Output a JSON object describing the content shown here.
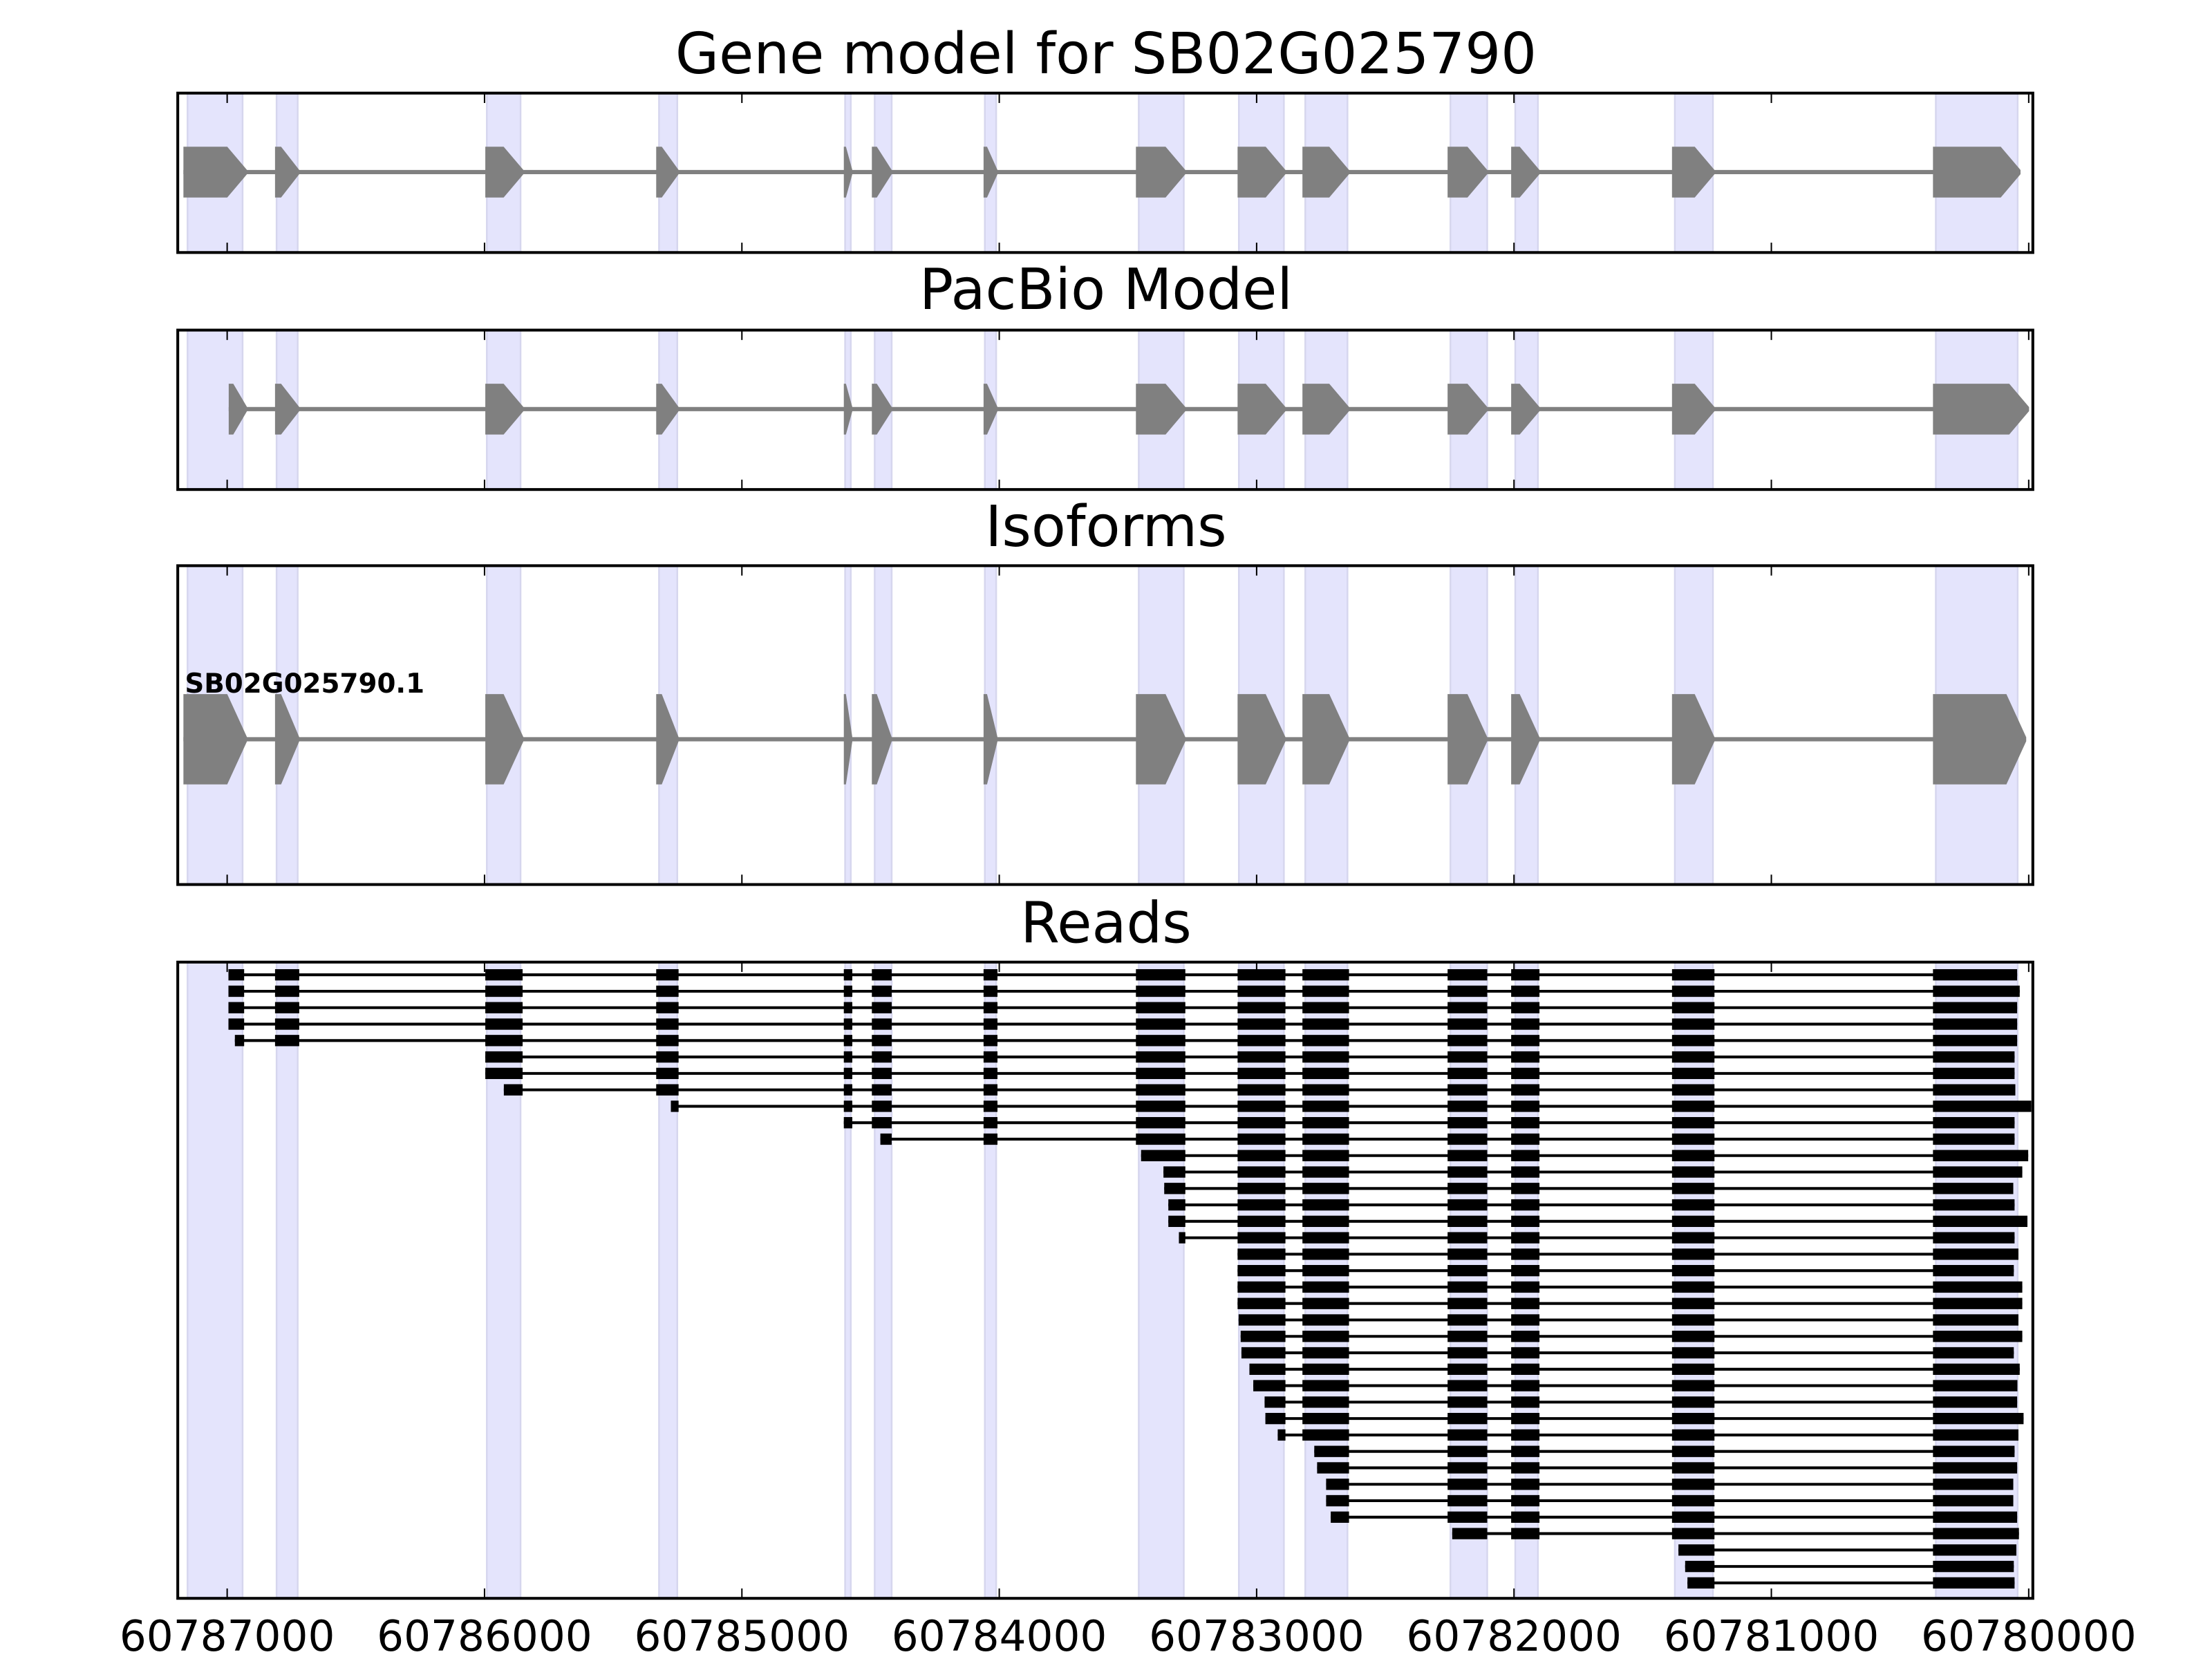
{
  "chart_data": {
    "type": "gene-track",
    "xlim": [
      60787192,
      60779984
    ],
    "x_ticks": [
      60787000,
      60786000,
      60785000,
      60784000,
      60783000,
      60782000,
      60781000,
      60780000
    ],
    "x_tick_labels": [
      "60787000",
      "60786000",
      "60785000",
      "60784000",
      "60783000",
      "60782000",
      "60781000",
      "60780000"
    ],
    "colors": {
      "exon": "#808080",
      "read": "#000000",
      "shade": "#e4e4fc",
      "shade_edge": "#d6d6ee"
    },
    "shaded_regions": [
      [
        60787154,
        60786940
      ],
      [
        60786808,
        60786726
      ],
      [
        60785991,
        60785860
      ],
      [
        60785322,
        60785251
      ],
      [
        60784599,
        60784577
      ],
      [
        60784484,
        60784418
      ],
      [
        60784056,
        60784012
      ],
      [
        60783458,
        60783283
      ],
      [
        60783069,
        60782894
      ],
      [
        60782811,
        60782647
      ],
      [
        60782247,
        60782104
      ],
      [
        60781995,
        60781907
      ],
      [
        60781375,
        60781227
      ],
      [
        60780361,
        60780043
      ]
    ],
    "panels": [
      {
        "title": "Gene model for SB02G025790",
        "exons": [
          [
            60787170,
            60786923
          ],
          [
            60786814,
            60786720
          ],
          [
            60785997,
            60785849
          ],
          [
            60785333,
            60785246
          ],
          [
            60784604,
            60784571
          ],
          [
            60784495,
            60784418
          ],
          [
            60784061,
            60784007
          ],
          [
            60783469,
            60783277
          ],
          [
            60783074,
            60782888
          ],
          [
            60782822,
            60782641
          ],
          [
            60782258,
            60782104
          ],
          [
            60782011,
            60781901
          ],
          [
            60781386,
            60781221
          ],
          [
            60780372,
            60780032
          ]
        ]
      },
      {
        "title": "PacBio Model",
        "exons": [
          [
            60786994,
            60786923
          ],
          [
            60786814,
            60786720
          ],
          [
            60785997,
            60785849
          ],
          [
            60785333,
            60785246
          ],
          [
            60784604,
            60784571
          ],
          [
            60784495,
            60784418
          ],
          [
            60784061,
            60784007
          ],
          [
            60783469,
            60783277
          ],
          [
            60783074,
            60782888
          ],
          [
            60782822,
            60782641
          ],
          [
            60782258,
            60782104
          ],
          [
            60782011,
            60781901
          ],
          [
            60781386,
            60781221
          ],
          [
            60780372,
            60779999
          ]
        ]
      },
      {
        "title": "Isoforms",
        "isoform_label": "SB02G025790.1",
        "exons": [
          [
            60787170,
            60786923
          ],
          [
            60786814,
            60786720
          ],
          [
            60785997,
            60785849
          ],
          [
            60785333,
            60785246
          ],
          [
            60784604,
            60784571
          ],
          [
            60784495,
            60784418
          ],
          [
            60784061,
            60784007
          ],
          [
            60783469,
            60783277
          ],
          [
            60783074,
            60782888
          ],
          [
            60782822,
            60782641
          ],
          [
            60782258,
            60782104
          ],
          [
            60782011,
            60781901
          ],
          [
            60781386,
            60781221
          ],
          [
            60780372,
            60780010
          ]
        ]
      },
      {
        "title": "Reads",
        "read_exons": [
          [
            60787170,
            60786934
          ],
          [
            60786814,
            60786720
          ],
          [
            60785997,
            60785852
          ],
          [
            60785333,
            60785246
          ],
          [
            60784604,
            60784571
          ],
          [
            60784495,
            60784418
          ],
          [
            60784061,
            60784007
          ],
          [
            60783469,
            60783277
          ],
          [
            60783074,
            60782888
          ],
          [
            60782822,
            60782641
          ],
          [
            60782258,
            60782104
          ],
          [
            60782011,
            60781901
          ],
          [
            60781386,
            60781221
          ],
          [
            60780372,
            60779980
          ]
        ],
        "reads": [
          [
            60786995,
            60780045
          ],
          [
            60786995,
            60780035
          ],
          [
            60786995,
            60780045
          ],
          [
            60786995,
            60780045
          ],
          [
            60786970,
            60780045
          ],
          [
            60785997,
            60780055
          ],
          [
            60785997,
            60780055
          ],
          [
            60785925,
            60780052
          ],
          [
            60785276,
            60779990
          ],
          [
            60784604,
            60780055
          ],
          [
            60784462,
            60780055
          ],
          [
            60783449,
            60780002
          ],
          [
            60783362,
            60780025
          ],
          [
            60783359,
            60780060
          ],
          [
            60783343,
            60780055
          ],
          [
            60783343,
            60780005
          ],
          [
            60783302,
            60780055
          ],
          [
            60783074,
            60780040
          ],
          [
            60783074,
            60780058
          ],
          [
            60783074,
            60780025
          ],
          [
            60783074,
            60780025
          ],
          [
            60783070,
            60780040
          ],
          [
            60783062,
            60780025
          ],
          [
            60783059,
            60780058
          ],
          [
            60783028,
            60780035
          ],
          [
            60783013,
            60780044
          ],
          [
            60782969,
            60780045
          ],
          [
            60782966,
            60780020
          ],
          [
            60782918,
            60780040
          ],
          [
            60782776,
            60780055
          ],
          [
            60782765,
            60780045
          ],
          [
            60782730,
            60780060
          ],
          [
            60782730,
            60780060
          ],
          [
            60782712,
            60780045
          ],
          [
            60782240,
            60780038
          ],
          [
            60781361,
            60780048
          ],
          [
            60781335,
            60780058
          ],
          [
            60781326,
            60780055
          ]
        ]
      }
    ]
  }
}
